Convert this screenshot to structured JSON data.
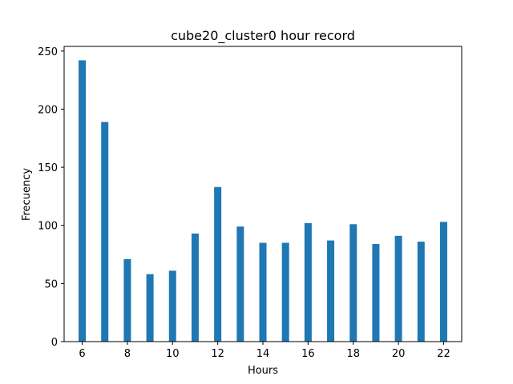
{
  "chart_data": {
    "type": "bar",
    "title": "cube20_cluster0 hour record",
    "xlabel": "Hours",
    "ylabel": "Frecuency",
    "x": [
      6,
      7,
      8,
      9,
      10,
      11,
      12,
      13,
      14,
      15,
      16,
      17,
      18,
      19,
      20,
      21,
      22
    ],
    "values": [
      242,
      189,
      71,
      58,
      61,
      93,
      133,
      99,
      85,
      85,
      102,
      87,
      101,
      84,
      91,
      86,
      103
    ],
    "xlim": [
      5.2,
      22.8
    ],
    "ylim": [
      0,
      254
    ],
    "xticks": [
      6,
      8,
      10,
      12,
      14,
      16,
      18,
      20,
      22
    ],
    "yticks": [
      0,
      50,
      100,
      150,
      200,
      250
    ],
    "bar_color": "#1f77b4",
    "grid": false,
    "legend": "none"
  }
}
